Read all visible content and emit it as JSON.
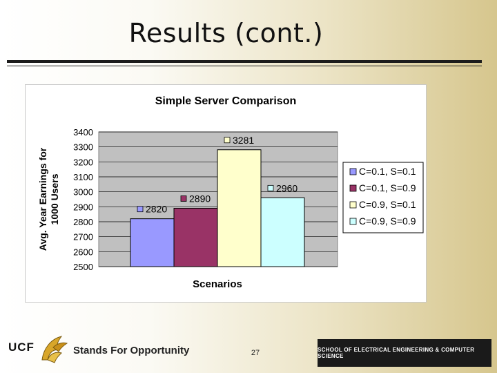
{
  "slide": {
    "title": "Results (cont.)",
    "page_number": "27"
  },
  "footer": {
    "ucf_text": "UCF",
    "tagline": "Stands For Opportunity",
    "school_banner": "SCHOOL OF ELECTRICAL ENGINEERING & COMPUTER SCIENCE"
  },
  "colors": {
    "plot_background": "#c0c0c0",
    "series_1": "#9999ff",
    "series_2": "#993366",
    "series_3": "#ffffcc",
    "series_4": "#ccffff"
  },
  "chart_data": {
    "type": "bar",
    "title": "Simple Server Comparison",
    "xlabel": "Scenarios",
    "ylabel": "Avg. Year Earnings for 1000 Users",
    "ylim": [
      2500,
      3400
    ],
    "yticks": [
      2500,
      2600,
      2700,
      2800,
      2900,
      3000,
      3100,
      3200,
      3300,
      3400
    ],
    "grid": true,
    "legend_position": "right",
    "series": [
      {
        "name": "C=0.1, S=0.1",
        "value": 2820,
        "label": "2820"
      },
      {
        "name": "C=0.1, S=0.9",
        "value": 2890,
        "label": "2890"
      },
      {
        "name": "C=0.9, S=0.1",
        "value": 3281,
        "label": "3281"
      },
      {
        "name": "C=0.9, S=0.9",
        "value": 2960,
        "label": "2960"
      }
    ]
  }
}
